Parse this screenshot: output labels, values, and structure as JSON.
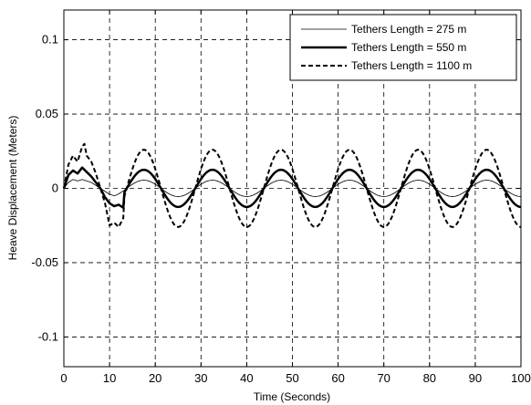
{
  "chart_data": {
    "type": "line",
    "xlabel": "Time (Seconds)",
    "ylabel": "Heave Displacement (Meters)",
    "xlim": [
      0,
      100
    ],
    "ylim": [
      -0.12,
      0.12
    ],
    "xticks": [
      0,
      10,
      20,
      30,
      40,
      50,
      60,
      70,
      80,
      90,
      100
    ],
    "yticks": [
      -0.1,
      -0.05,
      0,
      0.05,
      0.1
    ],
    "xtick_labels": [
      "0",
      "10",
      "20",
      "30",
      "40",
      "50",
      "60",
      "70",
      "80",
      "90",
      "100"
    ],
    "ytick_labels": [
      "-0.1",
      "-0.05",
      "0",
      "0.05",
      "0.1"
    ],
    "grid": true,
    "grid_style": "dashed",
    "legend_position": "top-right",
    "wave_period_s": 15,
    "series": [
      {
        "name": "Tethers Length = 275 m",
        "style": "thin-solid",
        "color": "#000000",
        "amplitude": 0.0055,
        "transient": [
          [
            0,
            0
          ],
          [
            1,
            0.004
          ],
          [
            2,
            0.006
          ],
          [
            3,
            0.005
          ],
          [
            4,
            0.006
          ],
          [
            5,
            0.005
          ],
          [
            6,
            0.004
          ],
          [
            7,
            0.002
          ],
          [
            8,
            0
          ],
          [
            9,
            -0.002
          ],
          [
            10,
            -0.004
          ],
          [
            11,
            -0.005
          ]
        ]
      },
      {
        "name": "Tethers Length = 550 m",
        "style": "thick-solid",
        "color": "#000000",
        "amplitude": 0.0125,
        "transient": [
          [
            0,
            0
          ],
          [
            1,
            0.009
          ],
          [
            2,
            0.012
          ],
          [
            3,
            0.01
          ],
          [
            4,
            0.014
          ],
          [
            5,
            0.011
          ],
          [
            6,
            0.008
          ],
          [
            7,
            0.004
          ],
          [
            8,
            0
          ],
          [
            9,
            -0.006
          ],
          [
            10,
            -0.01
          ],
          [
            11,
            -0.012
          ],
          [
            12,
            -0.011
          ],
          [
            13,
            -0.013
          ]
        ]
      },
      {
        "name": "Tethers Length = 1100 m",
        "style": "dashed",
        "color": "#000000",
        "amplitude": 0.026,
        "transient": [
          [
            0,
            0
          ],
          [
            1,
            0.016
          ],
          [
            2,
            0.022
          ],
          [
            3,
            0.018
          ],
          [
            4,
            0.028
          ],
          [
            4.5,
            0.03
          ],
          [
            5,
            0.022
          ],
          [
            6,
            0.018
          ],
          [
            7,
            0.01
          ],
          [
            8,
            0
          ],
          [
            9,
            -0.01
          ],
          [
            10,
            -0.025
          ],
          [
            11,
            -0.023
          ],
          [
            12,
            -0.026
          ],
          [
            13,
            -0.02
          ]
        ]
      }
    ]
  }
}
